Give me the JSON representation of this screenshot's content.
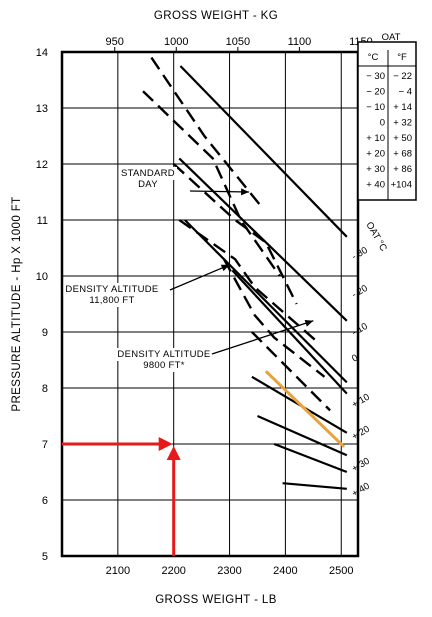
{
  "chart_data": {
    "type": "line",
    "title": "GROSS WEIGHT - KG",
    "xlabel": "GROSS WEIGHT - LB",
    "ylabel": "PRESSURE ALTITUDE - Hp X 1000 FT",
    "x_bottom": {
      "ticks": [
        2100,
        2200,
        2300,
        2400,
        2500
      ],
      "range": [
        2000,
        2530
      ]
    },
    "x_top": {
      "ticks": [
        950,
        1000,
        1050,
        1100,
        1150
      ]
    },
    "y": {
      "ticks": [
        5,
        6,
        7,
        8,
        9,
        10,
        11,
        12,
        13,
        14
      ],
      "range": [
        5,
        14
      ]
    },
    "grid": true,
    "oat_lines": [
      {
        "label": "-30",
        "points": [
          [
            2212,
            13.75
          ],
          [
            2510,
            10.7
          ]
        ]
      },
      {
        "label": "-20",
        "points": [
          [
            2210,
            12.1
          ],
          [
            2510,
            9.2
          ]
        ]
      },
      {
        "label": "-10",
        "points": [
          [
            2220,
            11.0
          ],
          [
            2510,
            8.1
          ]
        ]
      },
      {
        "label": "0",
        "points": [
          [
            2305,
            10.1
          ],
          [
            2510,
            7.9
          ]
        ]
      },
      {
        "label": "+10",
        "points": [
          [
            2340,
            8.2
          ],
          [
            2510,
            7.2
          ]
        ]
      },
      {
        "label": "+20",
        "points": [
          [
            2350,
            7.5
          ],
          [
            2510,
            6.8
          ]
        ]
      },
      {
        "label": "+30",
        "points": [
          [
            2380,
            7.0
          ],
          [
            2510,
            6.5
          ]
        ]
      },
      {
        "label": "+40",
        "points": [
          [
            2395,
            6.3
          ],
          [
            2510,
            6.2
          ]
        ]
      }
    ],
    "oat_dash_lines": [
      [
        [
          2160,
          13.9
        ],
        [
          2255,
          12.5
        ],
        [
          2360,
          11.2
        ]
      ],
      [
        [
          2145,
          13.3
        ],
        [
          2270,
          12.1
        ],
        [
          2320,
          11.0
        ],
        [
          2390,
          10.0
        ]
      ],
      [
        [
          2200,
          12.0
        ],
        [
          2310,
          11.0
        ],
        [
          2365,
          10.6
        ],
        [
          2420,
          9.5
        ]
      ],
      [
        [
          2210,
          11.0
        ],
        [
          2310,
          10.3
        ],
        [
          2345,
          9.8
        ],
        [
          2460,
          8.8
        ]
      ],
      [
        [
          2290,
          10.3
        ],
        [
          2345,
          9.3
        ],
        [
          2380,
          8.9
        ],
        [
          2470,
          8.2
        ]
      ],
      [
        [
          2340,
          9.0
        ],
        [
          2400,
          8.4
        ],
        [
          2480,
          7.6
        ]
      ]
    ],
    "highlight_line": {
      "points": [
        [
          2365,
          8.3
        ],
        [
          2505,
          6.95
        ]
      ],
      "color": "#e8a33a"
    },
    "annotation_arrows": [
      {
        "label_ref": "standard_day",
        "to": [
          2335,
          11.5
        ]
      },
      {
        "label_ref": "da_11800",
        "to": [
          2300,
          10.2
        ]
      },
      {
        "label_ref": "da_9800",
        "to": [
          2450,
          9.2
        ]
      }
    ],
    "annotations": {
      "standard_day": [
        "STANDARD",
        "DAY"
      ],
      "da_11800": [
        "DENSITY ALTITUDE",
        "11,800 FT"
      ],
      "da_9800": [
        "DENSITY ALTITUDE",
        "9800 FT*"
      ]
    },
    "oat_table": {
      "title": "OAT",
      "headers": [
        "°C",
        "°F"
      ],
      "rows": [
        [
          "− 30",
          "− 22"
        ],
        [
          "− 20",
          "− 4"
        ],
        [
          "− 10",
          "+ 14"
        ],
        [
          "0",
          "+ 32"
        ],
        [
          "+ 10",
          "+ 50"
        ],
        [
          "+ 20",
          "+ 68"
        ],
        [
          "+ 30",
          "+ 86"
        ],
        [
          "+ 40",
          "+104"
        ]
      ]
    },
    "oat_axis_label": "OAT °C",
    "oat_line_labels": [
      "- 30",
      "- 20",
      "- 10",
      "0",
      "+ 10",
      "+ 20",
      "+ 30",
      "+ 40"
    ],
    "red_marker": {
      "weight_lb": 2200,
      "altitude": 7,
      "color": "#e8191a"
    }
  }
}
